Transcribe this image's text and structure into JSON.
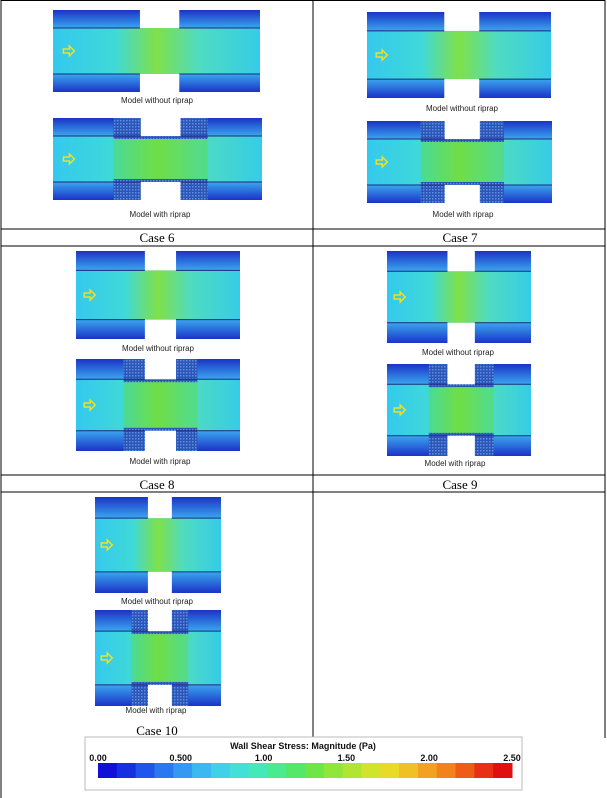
{
  "cells": [
    {
      "case": "Case 6",
      "panels": [
        {
          "caption": "Model without  riprap"
        },
        {
          "caption": "Model with riprap"
        }
      ]
    },
    {
      "case": "Case 7",
      "panels": [
        {
          "caption": "Model without  riprap"
        },
        {
          "caption": "Model with riprap"
        }
      ]
    },
    {
      "case": "Case 8",
      "panels": [
        {
          "caption": "Model without  riprap"
        },
        {
          "caption": "Model with riprap"
        }
      ]
    },
    {
      "case": "Case 9",
      "panels": [
        {
          "caption": "Model without  riprap"
        },
        {
          "caption": "Model with riprap"
        }
      ]
    },
    {
      "case": "Case 10",
      "panels": [
        {
          "caption": "Model without  riprap"
        },
        {
          "caption": "Model with riprap"
        }
      ]
    }
  ],
  "legend": {
    "title": "Wall Shear Stress: Magnitude (Pa)",
    "ticks": [
      "0.00",
      "0.500",
      "1.00",
      "1.50",
      "2.00",
      "2.50"
    ]
  }
}
